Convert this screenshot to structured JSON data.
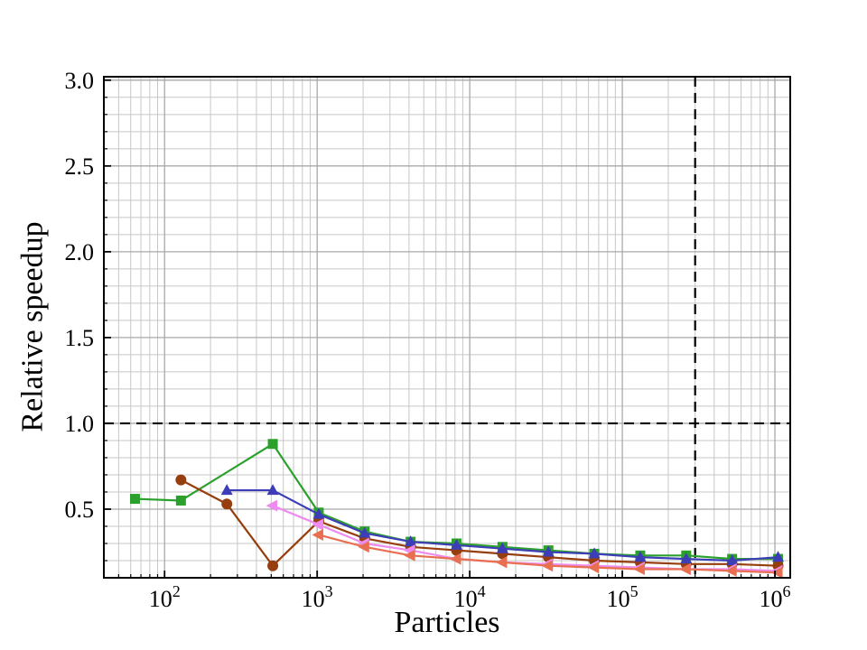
{
  "figure": {
    "background": "#ffffff"
  },
  "chart_data": {
    "type": "line",
    "title": "",
    "xlabel": "Particles",
    "ylabel": "Relative speedup",
    "x_scale": "log",
    "y_scale": "linear",
    "xlim": [
      40,
      1260000
    ],
    "ylim": [
      0.1,
      3.02
    ],
    "x_ticks": [
      {
        "value": 100,
        "base": "10",
        "exp": "2"
      },
      {
        "value": 1000,
        "base": "10",
        "exp": "3"
      },
      {
        "value": 10000,
        "base": "10",
        "exp": "4"
      },
      {
        "value": 100000,
        "base": "10",
        "exp": "5"
      },
      {
        "value": 1000000,
        "base": "10",
        "exp": "6"
      }
    ],
    "y_ticks": [
      {
        "value": 0.5,
        "label": "0.5"
      },
      {
        "value": 1.0,
        "label": "1.0"
      },
      {
        "value": 1.5,
        "label": "1.5"
      },
      {
        "value": 2.0,
        "label": "2.0"
      },
      {
        "value": 2.5,
        "label": "2.5"
      },
      {
        "value": 3.0,
        "label": "3.0"
      }
    ],
    "grid": {
      "show": true,
      "major_color": "#a9a9a9",
      "minor_color": "#c7c7c7"
    },
    "reference_lines": [
      {
        "name": "unity-speedup-line",
        "orientation": "horizontal",
        "value": 1.0,
        "color": "#000000",
        "style": "dashed"
      },
      {
        "name": "particle-count-line",
        "orientation": "vertical",
        "value": 300000,
        "color": "#000000",
        "style": "dashed"
      }
    ],
    "legend": {
      "show": false
    },
    "series": [
      {
        "name": "green-squares",
        "marker": "square",
        "color": "#2ca02c",
        "x": [
          64,
          128,
          512,
          1024,
          2048,
          4096,
          8192,
          16384,
          32768,
          65536,
          131072,
          262144,
          524288,
          1048576
        ],
        "y": [
          0.56,
          0.55,
          0.88,
          0.48,
          0.37,
          0.31,
          0.3,
          0.28,
          0.26,
          0.24,
          0.23,
          0.23,
          0.21,
          0.21
        ]
      },
      {
        "name": "brown-circles",
        "marker": "circle",
        "color": "#963e0e",
        "x": [
          128,
          256,
          512,
          1024,
          2048,
          4096,
          8192,
          16384,
          32768,
          65536,
          131072,
          262144,
          524288,
          1048576
        ],
        "y": [
          0.67,
          0.53,
          0.17,
          0.43,
          0.33,
          0.28,
          0.26,
          0.24,
          0.22,
          0.2,
          0.19,
          0.18,
          0.18,
          0.17
        ]
      },
      {
        "name": "blue-up-triangles",
        "marker": "triangle-up",
        "color": "#3d3db7",
        "x": [
          256,
          512,
          1024,
          2048,
          4096,
          8192,
          16384,
          32768,
          65536,
          131072,
          262144,
          524288,
          1048576
        ],
        "y": [
          0.61,
          0.61,
          0.47,
          0.36,
          0.31,
          0.29,
          0.27,
          0.25,
          0.24,
          0.22,
          0.21,
          0.2,
          0.22
        ]
      },
      {
        "name": "pink-left-triangles",
        "marker": "triangle-left",
        "color": "#ee8bee",
        "x": [
          512,
          1024,
          2048,
          4096,
          8192,
          16384,
          32768,
          65536,
          131072,
          262144,
          524288,
          1048576
        ],
        "y": [
          0.52,
          0.41,
          0.3,
          0.26,
          0.21,
          0.19,
          0.18,
          0.17,
          0.16,
          0.15,
          0.15,
          0.14
        ]
      },
      {
        "name": "orange-left-triangles",
        "marker": "triangle-left",
        "color": "#e87050",
        "x": [
          1024,
          2048,
          4096,
          8192,
          16384,
          32768,
          65536,
          131072,
          262144,
          524288,
          1048576
        ],
        "y": [
          0.35,
          0.28,
          0.23,
          0.21,
          0.19,
          0.17,
          0.16,
          0.15,
          0.15,
          0.14,
          0.13
        ]
      }
    ]
  }
}
